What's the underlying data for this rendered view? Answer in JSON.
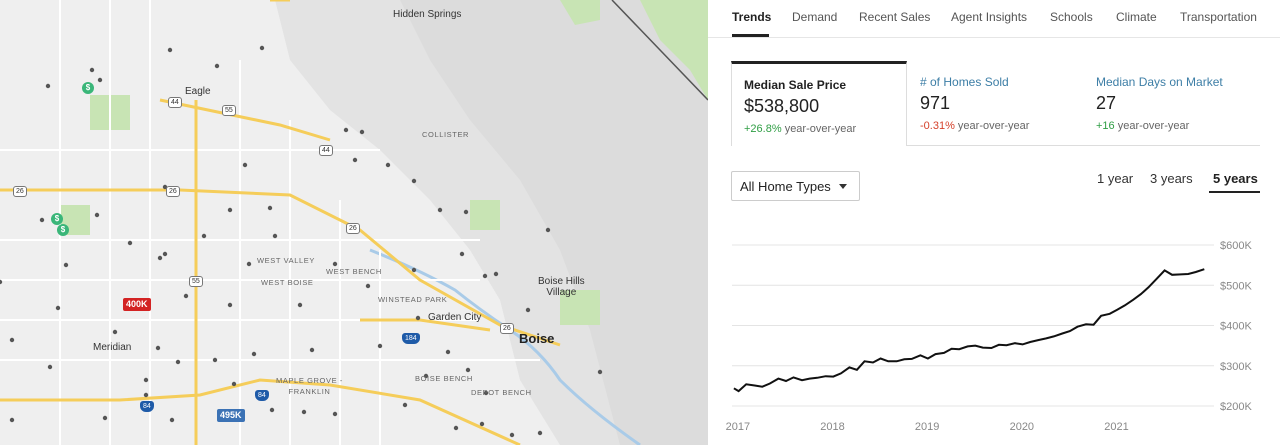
{
  "map": {
    "labels": {
      "hidden_springs": "Hidden\nSprings",
      "eagle": "Eagle",
      "collister": "COLLISTER",
      "west_valley": "WEST VALLEY",
      "west_bench": "WEST BENCH",
      "west_boise": "WEST BOISE",
      "winstead_park": "WINSTEAD PARK",
      "garden_city": "Garden City",
      "boise_hills_village": "Boise Hills\nVillage",
      "boise": "Boise",
      "meridian": "Meridian",
      "maple_grove_franklin": "MAPLE GROVE -\nFRANKLIN",
      "boise_bench": "BOISE BENCH",
      "depot_bench": "DEPOT BENCH"
    },
    "shields": {
      "r44_a": "44",
      "r55_a": "55",
      "r44_b": "44",
      "r26_a": "26",
      "r26_b": "26",
      "r26_c": "26",
      "r26_d": "26",
      "r55_b": "55",
      "i184": "184",
      "i84_a": "84",
      "i84_b": "84"
    },
    "pins": {
      "red": "400K",
      "blue": "495K"
    },
    "money_symbol": "$"
  },
  "tabs": [
    "Trends",
    "Demand",
    "Recent Sales",
    "Agent Insights",
    "Schools",
    "Climate",
    "Transportation"
  ],
  "stats": [
    {
      "label": "Median Sale Price",
      "value": "$538,800",
      "change": "+26.8%",
      "suffix": "year-over-year",
      "trend": "positive"
    },
    {
      "label": "# of Homes Sold",
      "value": "971",
      "change": "-0.31%",
      "suffix": "year-over-year",
      "trend": "negative"
    },
    {
      "label": "Median Days on Market",
      "value": "27",
      "change": "+16",
      "suffix": "year-over-year",
      "trend": "positive"
    }
  ],
  "home_type": {
    "selected": "All Home Types"
  },
  "ranges": [
    "1 year",
    "3 years",
    "5 years"
  ],
  "selected_range": "5 years",
  "colors": {
    "positive": "#2f9e44",
    "negative": "#d5412b",
    "link": "#3d7ea6",
    "line": "#111111"
  },
  "chart_data": {
    "type": "line",
    "series": [
      {
        "x": [
          2016.95,
          2017.0,
          2017.08,
          2017.17,
          2017.25,
          2017.33,
          2017.42,
          2017.5,
          2017.58,
          2017.67,
          2017.75,
          2017.83,
          2017.92,
          2018.0,
          2018.08,
          2018.17,
          2018.25,
          2018.33,
          2018.42,
          2018.5,
          2018.58,
          2018.67,
          2018.75,
          2018.83,
          2018.92,
          2019.0,
          2019.08,
          2019.17,
          2019.25,
          2019.33,
          2019.42,
          2019.5,
          2019.58,
          2019.67,
          2019.75,
          2019.83,
          2019.92,
          2020.0,
          2020.08,
          2020.17,
          2020.25,
          2020.33,
          2020.42,
          2020.5,
          2020.58,
          2020.67,
          2020.75,
          2020.83,
          2020.92,
          2021.0,
          2021.08,
          2021.17,
          2021.25,
          2021.33,
          2021.42,
          2021.5,
          2021.58,
          2021.67,
          2021.75,
          2021.83,
          2021.92
        ],
        "y": [
          244,
          237,
          254,
          251,
          248,
          256,
          268,
          262,
          271,
          264,
          268,
          270,
          274,
          273,
          281,
          296,
          290,
          311,
          308,
          318,
          311,
          311,
          316,
          317,
          326,
          318,
          329,
          332,
          342,
          341,
          348,
          350,
          345,
          344,
          352,
          351,
          356,
          353,
          359,
          364,
          368,
          373,
          380,
          386,
          397,
          403,
          402,
          424,
          429,
          439,
          450,
          464,
          478,
          495,
          517,
          537,
          526,
          527,
          528,
          533,
          540
        ]
      }
    ],
    "xticks": [
      "2017",
      "2018",
      "2019",
      "2020",
      "2021"
    ],
    "xtick_values": [
      2017,
      2018,
      2019,
      2020,
      2021
    ],
    "yticks": [
      "$200K",
      "$300K",
      "$400K",
      "$500K",
      "$600K"
    ],
    "ytick_values": [
      200,
      300,
      400,
      500,
      600
    ],
    "xlim": [
      2016.93,
      2021.98
    ],
    "ylim": [
      200,
      600
    ],
    "grid": true
  }
}
